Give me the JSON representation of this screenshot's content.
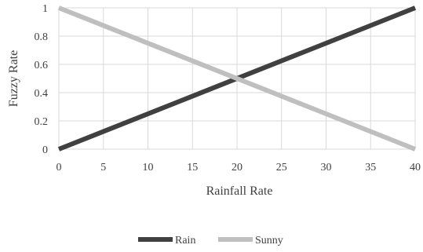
{
  "chart_data": {
    "type": "line",
    "xlabel": "Rainfall Rate",
    "ylabel": "Fuzzy Rate",
    "xlim": [
      0,
      40
    ],
    "ylim": [
      0,
      1
    ],
    "x_ticks": [
      0,
      5,
      10,
      15,
      20,
      25,
      30,
      35,
      40
    ],
    "y_ticks": [
      0,
      0.2,
      0.4,
      0.6,
      0.8,
      1
    ],
    "x_tick_labels": [
      "0",
      "5",
      "10",
      "15",
      "20",
      "25",
      "30",
      "35",
      "40"
    ],
    "y_tick_labels": [
      "0",
      "0.2",
      "0.4",
      "0.6",
      "0.8",
      "1"
    ],
    "grid": true,
    "legend_position": "bottom",
    "series": [
      {
        "name": "Rain",
        "color": "#404040",
        "x": [
          0,
          40
        ],
        "y": [
          0,
          1
        ]
      },
      {
        "name": "Sunny",
        "color": "#bfbfbf",
        "x": [
          0,
          40
        ],
        "y": [
          1,
          0
        ]
      }
    ]
  }
}
